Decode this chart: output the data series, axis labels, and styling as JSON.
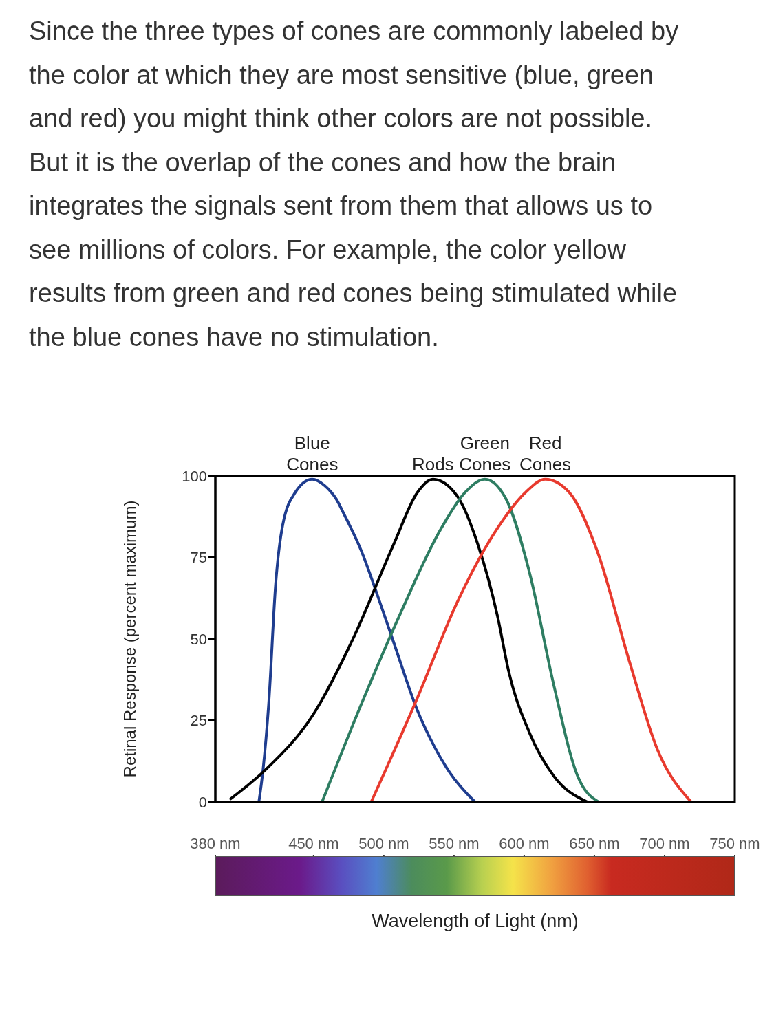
{
  "chart_data": {
    "type": "line",
    "annotations": [
      "Since the three types of cones are commonly labeled by the color at which they are most sensitive (blue, green and red) you might think other colors are not possible. But it is the overlap of the cones and how the brain integrates the signals sent from them that allows us to see millions of colors. For example, the color yellow results from green and red cones being stimulated while the blue cones have no stimulation."
    ],
    "xlabel": "Wavelength of Light (nm)",
    "ylabel": "Retinal Response (percent maximum)",
    "xlim": [
      380,
      750
    ],
    "xticks": [
      {
        "value": 380,
        "label": "380 nm"
      },
      {
        "value": 450,
        "label": "450 nm"
      },
      {
        "value": 500,
        "label": "500 nm"
      },
      {
        "value": 550,
        "label": "550 nm"
      },
      {
        "value": 600,
        "label": "600 nm"
      },
      {
        "value": 650,
        "label": "650 nm"
      },
      {
        "value": 700,
        "label": "700 nm"
      },
      {
        "value": 750,
        "label": "750 nm"
      }
    ],
    "ylim": [
      0,
      100
    ],
    "yticks": [
      0,
      25,
      50,
      75,
      100
    ],
    "marker": "none",
    "line_style": "solid",
    "series": [
      {
        "name": "Blue Cones",
        "color": "#1f3d8f",
        "x": [
          411,
          414,
          418,
          423,
          428,
          437,
          449,
          458,
          466,
          472,
          484,
          495,
          507,
          524,
          536,
          547,
          565
        ],
        "values": [
          0,
          10,
          30,
          67,
          85,
          95,
          99,
          97,
          93,
          88,
          77,
          64,
          49,
          28,
          17,
          9,
          0
        ]
      },
      {
        "name": "Rods",
        "color": "#000000",
        "x": [
          391,
          416,
          450,
          478,
          507,
          524,
          535,
          552,
          567,
          581,
          589,
          604,
          621,
          645
        ],
        "values": [
          1,
          10,
          27,
          50,
          79,
          95,
          99,
          94,
          79,
          57,
          40,
          21,
          8,
          0
        ]
      },
      {
        "name": "Green Cones",
        "color": "#2e7d62",
        "x": [
          456,
          484,
          512,
          541,
          558,
          572,
          587,
          604,
          621,
          638,
          653
        ],
        "values": [
          0,
          30,
          58,
          84,
          95,
          99,
          93,
          70,
          36,
          8,
          0
        ]
      },
      {
        "name": "Red Cones",
        "color": "#e83a2e",
        "x": [
          491,
          524,
          552,
          581,
          601,
          615,
          632,
          652,
          675,
          695,
          719
        ],
        "values": [
          0,
          32,
          61,
          84,
          95,
          99,
          95,
          77,
          43,
          16,
          0
        ]
      }
    ]
  }
}
